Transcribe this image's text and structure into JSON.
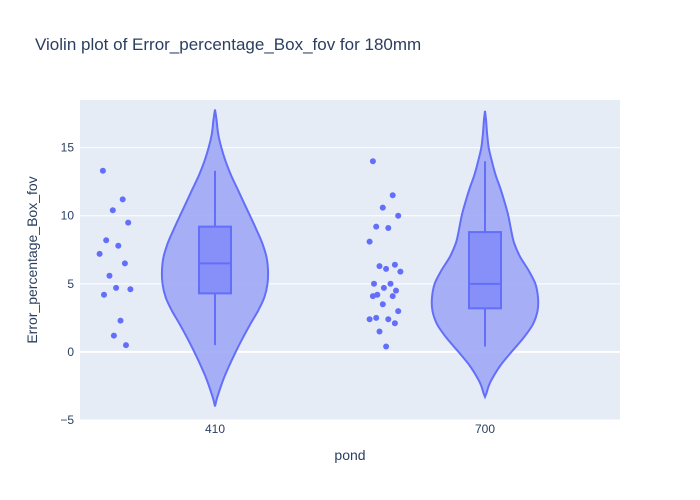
{
  "chart_data": {
    "type": "violin",
    "title": "Violin plot of Error_percentage_Box_fov for 180mm",
    "xlabel": "pond",
    "ylabel": "Error_percentage_Box_fov",
    "categories": [
      "410",
      "700"
    ],
    "ylim": [
      -5,
      18.5
    ],
    "yticks": [
      -5,
      0,
      5,
      10,
      15
    ],
    "ytick_labels": [
      "−5",
      "0",
      "5",
      "10",
      "15"
    ],
    "grid": true,
    "colors": {
      "plot_bg": "#e5ecf6",
      "violin_fill": "#9ea8f6",
      "violin_line": "#636efa",
      "box_fill": "#8790f8",
      "points": "#636efa",
      "text": "#2a3f5f"
    },
    "series": [
      {
        "category": "410",
        "points": [
          13.3,
          11.2,
          10.4,
          9.5,
          8.2,
          7.8,
          7.2,
          6.5,
          5.6,
          4.7,
          4.6,
          4.2,
          2.3,
          1.2,
          0.5
        ],
        "box": {
          "min": 0.5,
          "q1": 4.3,
          "median": 6.5,
          "q3": 9.2,
          "max": 13.3
        },
        "violin_range": [
          -4.0,
          17.8
        ],
        "density": [
          [
            -4.0,
            0.0
          ],
          [
            -3.5,
            0.03
          ],
          [
            -3.0,
            0.07
          ],
          [
            -2.0,
            0.16
          ],
          [
            -1.0,
            0.27
          ],
          [
            0.0,
            0.39
          ],
          [
            1.0,
            0.52
          ],
          [
            2.0,
            0.66
          ],
          [
            3.0,
            0.81
          ],
          [
            4.0,
            0.93
          ],
          [
            5.0,
            0.99
          ],
          [
            6.0,
            1.0
          ],
          [
            7.0,
            0.97
          ],
          [
            8.0,
            0.89
          ],
          [
            9.0,
            0.78
          ],
          [
            10.0,
            0.66
          ],
          [
            11.0,
            0.54
          ],
          [
            12.0,
            0.42
          ],
          [
            13.0,
            0.3
          ],
          [
            14.0,
            0.2
          ],
          [
            15.0,
            0.12
          ],
          [
            16.0,
            0.06
          ],
          [
            17.0,
            0.03
          ],
          [
            17.8,
            0.0
          ]
        ]
      },
      {
        "category": "700",
        "points": [
          14.0,
          11.5,
          10.6,
          10.0,
          9.2,
          9.1,
          8.1,
          6.4,
          6.3,
          6.1,
          5.9,
          5.0,
          5.0,
          4.7,
          4.5,
          4.2,
          4.1,
          4.1,
          3.5,
          3.0,
          2.5,
          2.4,
          2.4,
          2.1,
          1.5,
          0.4
        ],
        "box": {
          "min": 0.4,
          "q1": 3.2,
          "median": 5.0,
          "q3": 8.8,
          "max": 14.0
        },
        "violin_range": [
          -3.3,
          17.7
        ],
        "density": [
          [
            -3.3,
            0.0
          ],
          [
            -3.0,
            0.03
          ],
          [
            -2.5,
            0.07
          ],
          [
            -2.0,
            0.13
          ],
          [
            -1.0,
            0.29
          ],
          [
            0.0,
            0.5
          ],
          [
            1.0,
            0.72
          ],
          [
            2.0,
            0.9
          ],
          [
            3.0,
            0.99
          ],
          [
            4.0,
            1.0
          ],
          [
            5.0,
            0.95
          ],
          [
            6.0,
            0.82
          ],
          [
            7.0,
            0.66
          ],
          [
            8.0,
            0.55
          ],
          [
            9.0,
            0.49
          ],
          [
            10.0,
            0.44
          ],
          [
            11.0,
            0.37
          ],
          [
            12.0,
            0.29
          ],
          [
            13.0,
            0.2
          ],
          [
            14.0,
            0.13
          ],
          [
            15.0,
            0.07
          ],
          [
            16.0,
            0.04
          ],
          [
            17.0,
            0.02
          ],
          [
            17.7,
            0.0
          ]
        ]
      }
    ]
  }
}
